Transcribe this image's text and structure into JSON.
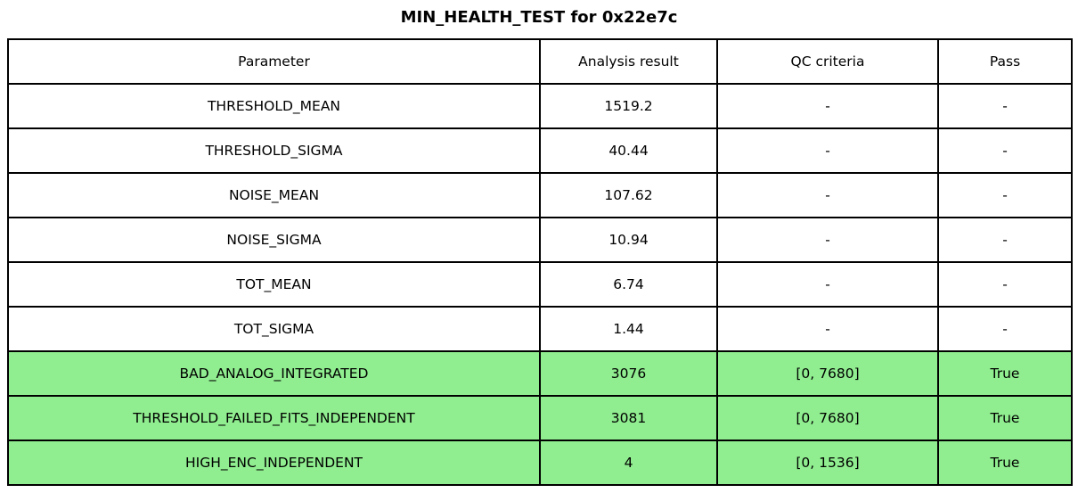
{
  "title": "MIN_HEALTH_TEST for 0x22e7c",
  "table": {
    "columns": [
      "Parameter",
      "Analysis result",
      "QC criteria",
      "Pass"
    ],
    "rows": [
      {
        "parameter": "THRESHOLD_MEAN",
        "analysis_result": "1519.2",
        "qc_criteria": "-",
        "pass": "-",
        "highlighted": false
      },
      {
        "parameter": "THRESHOLD_SIGMA",
        "analysis_result": "40.44",
        "qc_criteria": "-",
        "pass": "-",
        "highlighted": false
      },
      {
        "parameter": "NOISE_MEAN",
        "analysis_result": "107.62",
        "qc_criteria": "-",
        "pass": "-",
        "highlighted": false
      },
      {
        "parameter": "NOISE_SIGMA",
        "analysis_result": "10.94",
        "qc_criteria": "-",
        "pass": "-",
        "highlighted": false
      },
      {
        "parameter": "TOT_MEAN",
        "analysis_result": "6.74",
        "qc_criteria": "-",
        "pass": "-",
        "highlighted": false
      },
      {
        "parameter": "TOT_SIGMA",
        "analysis_result": "1.44",
        "qc_criteria": "-",
        "pass": "-",
        "highlighted": false
      },
      {
        "parameter": "BAD_ANALOG_INTEGRATED",
        "analysis_result": "3076",
        "qc_criteria": "[0, 7680]",
        "pass": "True",
        "highlighted": true
      },
      {
        "parameter": "THRESHOLD_FAILED_FITS_INDEPENDENT",
        "analysis_result": "3081",
        "qc_criteria": "[0, 7680]",
        "pass": "True",
        "highlighted": true
      },
      {
        "parameter": "HIGH_ENC_INDEPENDENT",
        "analysis_result": "4",
        "qc_criteria": "[0, 1536]",
        "pass": "True",
        "highlighted": true
      }
    ]
  },
  "colors": {
    "pass_row_background": "#90EE90",
    "border": "#000000",
    "background": "#ffffff",
    "text": "#000000"
  }
}
